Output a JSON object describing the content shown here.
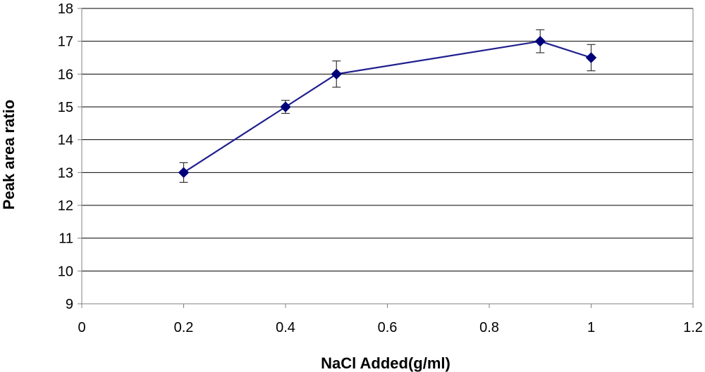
{
  "chart_data": {
    "type": "line",
    "xlabel": "NaCl Added(g/ml)",
    "ylabel": "Peak area ratio",
    "xlim": [
      0,
      1.2
    ],
    "ylim": [
      9,
      18
    ],
    "x_ticks": [
      "0",
      "0.2",
      "0.4",
      "0.6",
      "0.8",
      "1",
      "1.2"
    ],
    "y_ticks": [
      "9",
      "10",
      "11",
      "12",
      "13",
      "14",
      "15",
      "16",
      "17",
      "18"
    ],
    "grid": "horizontal",
    "series": [
      {
        "x": [
          0.2,
          0.4,
          0.5,
          0.9,
          1.0
        ],
        "y": [
          13.0,
          15.0,
          16.0,
          17.0,
          16.5
        ],
        "error": [
          0.3,
          0.2,
          0.4,
          0.35,
          0.4
        ],
        "color": "#000080",
        "marker": "diamond"
      }
    ],
    "colors": {
      "line": "#1F1F8F",
      "marker": "#00007A",
      "error_bar": "#333333",
      "grid": "#000000",
      "axis": "#808080"
    }
  }
}
